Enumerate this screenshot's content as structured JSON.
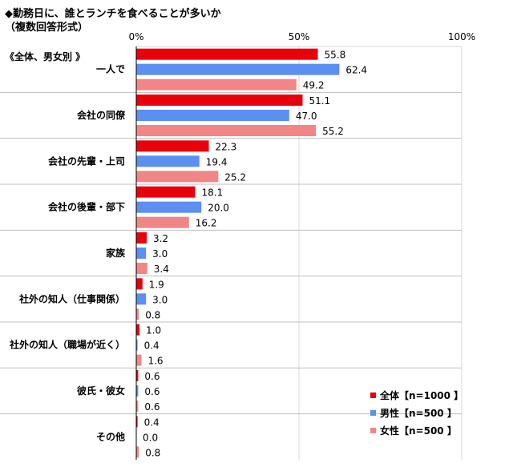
{
  "title": {
    "line1": "◆勤務日に、誰とランチを食べることが多いか",
    "line2": "（複数回答形式）"
  },
  "group_label": "《全体、男女別 》",
  "colors": {
    "all": "#e8000b",
    "male": "#5b8ff0",
    "female": "#f28585",
    "axis": "#000000",
    "separator": "#bfbfbf",
    "grid": "#d9d9d9"
  },
  "chart_data": {
    "type": "bar",
    "orientation": "horizontal",
    "categories": [
      "一人で",
      "会社の同僚",
      "会社の先輩・上司",
      "会社の後輩・部下",
      "家族",
      "社外の知人（仕事関係）",
      "社外の知人（職場が近く）",
      "彼氏・彼女",
      "その他"
    ],
    "series": [
      {
        "name": "全体【n=1000 】",
        "key": "all",
        "values": [
          55.8,
          51.1,
          22.3,
          18.1,
          3.2,
          1.9,
          1.0,
          0.6,
          0.4
        ]
      },
      {
        "name": "男性【n=500 】",
        "key": "male",
        "values": [
          62.4,
          47.0,
          19.4,
          20.0,
          3.0,
          3.0,
          0.4,
          0.6,
          0.0
        ]
      },
      {
        "name": "女性【n=500 】",
        "key": "female",
        "values": [
          49.2,
          55.2,
          25.2,
          16.2,
          3.4,
          0.8,
          1.6,
          0.6,
          0.8
        ]
      }
    ],
    "xlim": [
      0,
      100
    ],
    "x_ticks": [
      {
        "value": 0,
        "label": "0%"
      },
      {
        "value": 50,
        "label": "50%"
      },
      {
        "value": 100,
        "label": "100%"
      }
    ],
    "value_precision": 1,
    "legend_position": "bottom-right"
  }
}
